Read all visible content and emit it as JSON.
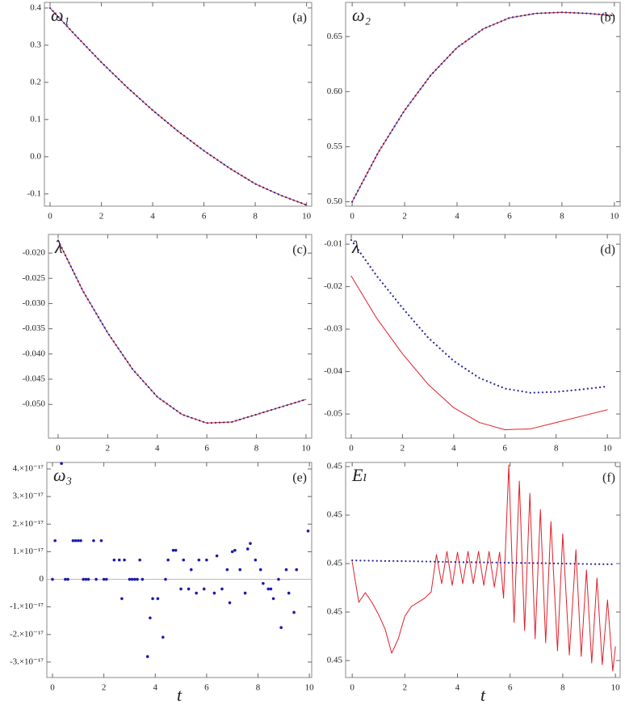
{
  "chart_data": [
    {
      "type": "line",
      "label": "(a)",
      "ylabel": "ω₁",
      "x": [
        0,
        1,
        2,
        3,
        4,
        5,
        6,
        7,
        8,
        9,
        10
      ],
      "xlim": [
        -0.22,
        10.2
      ],
      "ylim": [
        -0.133,
        0.415
      ],
      "xticks": [
        0,
        2,
        4,
        6,
        8,
        10
      ],
      "yticks": [
        -0.1,
        {
          "value": 0,
          "label": "0.0"
        },
        0.1,
        0.2,
        0.3,
        0.4
      ],
      "series": [
        {
          "color": "#e0202a",
          "style": "solid",
          "values": [
            0.4,
            0.326,
            0.254,
            0.187,
            0.125,
            0.068,
            0.016,
            -0.031,
            -0.073,
            -0.104,
            -0.13
          ]
        },
        {
          "color": "#2a2a9a",
          "style": "dotted",
          "values": [
            0.4,
            0.326,
            0.254,
            0.187,
            0.125,
            0.068,
            0.016,
            -0.031,
            -0.073,
            -0.104,
            -0.13
          ]
        }
      ]
    },
    {
      "type": "line",
      "label": "(b)",
      "ylabel": "ω₂",
      "x": [
        0,
        1,
        2,
        3,
        4,
        5,
        6,
        7,
        8,
        9,
        10
      ],
      "xlim": [
        -0.25,
        10.22
      ],
      "ylim": [
        0.496,
        0.681
      ],
      "xticks": [
        0,
        2,
        4,
        6,
        8,
        10
      ],
      "yticks": [
        {
          "value": 0.5,
          "label": "0.50"
        },
        {
          "value": 0.55,
          "label": "0.55"
        },
        {
          "value": 0.6,
          "label": "0.60"
        },
        {
          "value": 0.65,
          "label": "0.65"
        }
      ],
      "series": [
        {
          "color": "#e0202a",
          "style": "solid",
          "values": [
            0.5,
            0.545,
            0.583,
            0.615,
            0.64,
            0.657,
            0.667,
            0.671,
            0.672,
            0.671,
            0.669
          ]
        },
        {
          "color": "#2a2a9a",
          "style": "dotted",
          "values": [
            0.5,
            0.545,
            0.583,
            0.615,
            0.64,
            0.657,
            0.667,
            0.671,
            0.672,
            0.671,
            0.669
          ]
        }
      ]
    },
    {
      "type": "line",
      "label": "(c)",
      "ylabel": "λ",
      "x": [
        0,
        1,
        2,
        3,
        4,
        5,
        6,
        7,
        8,
        9,
        10
      ],
      "xlim": [
        -0.39,
        10.23
      ],
      "ylim": [
        -0.0567,
        -0.0163
      ],
      "xticks": [
        0,
        2,
        4,
        6,
        8,
        10
      ],
      "yticks": [
        {
          "value": -0.02,
          "label": "-0.020"
        },
        {
          "value": -0.025,
          "label": "-0.025"
        },
        {
          "value": -0.03,
          "label": "-0.030"
        },
        {
          "value": -0.035,
          "label": "-0.035"
        },
        {
          "value": -0.04,
          "label": "-0.040"
        },
        {
          "value": -0.045,
          "label": "-0.045"
        },
        {
          "value": -0.05,
          "label": "-0.050"
        }
      ],
      "series": [
        {
          "color": "#e0202a",
          "style": "solid",
          "values": [
            -0.0175,
            -0.0275,
            -0.0358,
            -0.043,
            -0.0485,
            -0.052,
            -0.0537,
            -0.0535,
            -0.052,
            -0.0505,
            -0.049
          ]
        },
        {
          "color": "#2a2a9a",
          "style": "dotted",
          "values": [
            -0.0175,
            -0.0275,
            -0.0358,
            -0.043,
            -0.0485,
            -0.052,
            -0.0537,
            -0.0535,
            -0.052,
            -0.0505,
            -0.049
          ]
        }
      ]
    },
    {
      "type": "line",
      "label": "(d)",
      "ylabel": "λ",
      "x": [
        0,
        1,
        2,
        3,
        4,
        5,
        6,
        7,
        8,
        9,
        10
      ],
      "xlim": [
        -0.22,
        10.5
      ],
      "ylim": [
        -0.0557,
        -0.0077
      ],
      "xticks": [
        0,
        2,
        4,
        6,
        8,
        10
      ],
      "yticks": [
        -0.01,
        -0.02,
        -0.03,
        -0.04,
        -0.05
      ],
      "series": [
        {
          "color": "#e0202a",
          "style": "solid",
          "values": [
            -0.0175,
            -0.0275,
            -0.0358,
            -0.043,
            -0.0485,
            -0.052,
            -0.0537,
            -0.0535,
            -0.052,
            -0.0505,
            -0.049
          ]
        },
        {
          "color": "#2a2a9a",
          "style": "dotted",
          "values": [
            -0.009,
            -0.0175,
            -0.025,
            -0.032,
            -0.0375,
            -0.0415,
            -0.044,
            -0.045,
            -0.0448,
            -0.0442,
            -0.0435
          ]
        }
      ]
    },
    {
      "type": "scatter",
      "label": "(e)",
      "ylabel": "ω₃",
      "xlabel": "t",
      "zeroline": true,
      "xlim": [
        -0.22,
        10.09
      ],
      "ylim": [
        -3.56e-17,
        4.235e-17
      ],
      "xticks": [
        0,
        2,
        4,
        6,
        8,
        10
      ],
      "yticks": [
        {
          "value": 4e-17,
          "label": "4.×10⁻¹⁷"
        },
        {
          "value": 3e-17,
          "label": "3.×10⁻¹⁷"
        },
        {
          "value": 2e-17,
          "label": "2.×10⁻¹⁷"
        },
        {
          "value": 1e-17,
          "label": "1.×10⁻¹⁷"
        },
        0,
        {
          "value": -1e-17,
          "label": "-1.×10⁻¹⁷"
        },
        {
          "value": -2e-17,
          "label": "-2.×10⁻¹⁷"
        },
        {
          "value": -3e-17,
          "label": "-3.×10⁻¹⁷"
        }
      ],
      "series": [
        {
          "color": "#1a1ab0",
          "style": "points",
          "x": [
            0,
            0.1,
            0.35,
            0.5,
            0.6,
            0.8,
            0.9,
            1.0,
            1.1,
            1.2,
            1.3,
            1.4,
            1.6,
            1.7,
            1.9,
            2.0,
            2.1,
            2.4,
            2.6,
            2.7,
            2.8,
            3.0,
            3.1,
            3.2,
            3.3,
            3.4,
            3.5,
            3.7,
            3.8,
            3.9,
            4.1,
            4.3,
            4.4,
            4.5,
            4.7,
            4.8,
            5.0,
            5.1,
            5.3,
            5.4,
            5.6,
            5.7,
            5.9,
            6.0,
            6.3,
            6.4,
            6.6,
            6.8,
            6.9,
            7.0,
            7.1,
            7.3,
            7.5,
            7.6,
            7.7,
            7.9,
            8.1,
            8.2,
            8.4,
            8.5,
            8.6,
            8.8,
            8.9,
            9.1,
            9.2,
            9.4,
            9.5,
            9.95
          ],
          "values": [
            0,
            1.4e-17,
            4.2e-17,
            0,
            0,
            1.4e-17,
            1.4e-17,
            1.4e-17,
            1.4e-17,
            0,
            0,
            0,
            1.4e-17,
            0,
            1.4e-17,
            0,
            0,
            7e-18,
            7e-18,
            -7e-18,
            7e-18,
            0,
            0,
            0,
            0,
            7e-18,
            0,
            -2.8e-17,
            -1.4e-17,
            -7e-18,
            -7e-18,
            -2.1e-17,
            0,
            7e-18,
            1.05e-17,
            1.05e-17,
            -3.5e-18,
            7e-18,
            -3.5e-18,
            3.5e-18,
            -5e-18,
            7e-18,
            -3.5e-18,
            7e-18,
            -5e-18,
            8.5e-18,
            -3.5e-18,
            3.5e-18,
            -8.5e-18,
            1e-17,
            1.05e-17,
            3.5e-18,
            -5e-18,
            1.1e-17,
            1.3e-17,
            7e-18,
            3.5e-18,
            -1.5e-18,
            -3.5e-18,
            -3.5e-18,
            -7e-18,
            0,
            -1.75e-17,
            3.5e-18,
            -5e-18,
            -1.2e-17,
            3.5e-18,
            1.75e-17
          ]
        }
      ]
    },
    {
      "type": "line",
      "label": "(f)",
      "ylabel": "Eₗ",
      "xlabel": "t",
      "x": [
        0,
        1,
        2,
        3,
        4,
        5,
        6,
        7,
        8,
        9,
        10
      ],
      "xlim": [
        -0.25,
        10.18
      ],
      "ylim": [
        0.4453,
        0.45417
      ],
      "xticks": [
        0,
        2,
        4,
        6,
        8,
        10
      ],
      "yticks": [
        {
          "value": 0.454,
          "label": "0.45"
        },
        {
          "value": 0.452,
          "label": "0.45"
        },
        {
          "value": 0.45,
          "label": "0.45"
        },
        {
          "value": 0.448,
          "label": "0.45"
        },
        {
          "value": 0.446,
          "label": "0.45"
        }
      ],
      "series": [
        {
          "color": "#e0202a",
          "style": "solid",
          "x": [
            0,
            0.25,
            0.5,
            0.75,
            1,
            1.25,
            1.5,
            1.75,
            2,
            2.25,
            2.5,
            2.75,
            3,
            3.2,
            3.4,
            3.6,
            3.8,
            4,
            4.2,
            4.4,
            4.6,
            4.8,
            5,
            5.2,
            5.4,
            5.6,
            5.75,
            5.95,
            6.15,
            6.35,
            6.55,
            6.75,
            6.95,
            7.15,
            7.35,
            7.55,
            7.8,
            8,
            8.25,
            8.5,
            8.7,
            8.9,
            9.1,
            9.3,
            9.5,
            9.7,
            9.9,
            10
          ],
          "values": [
            0.45007,
            0.4484,
            0.4488,
            0.4484,
            0.4479,
            0.4473,
            0.4463,
            0.4469,
            0.44783,
            0.44823,
            0.4484,
            0.44857,
            0.44883,
            0.45037,
            0.44917,
            0.4505,
            0.4491,
            0.45047,
            0.44917,
            0.4505,
            0.44917,
            0.4505,
            0.4491,
            0.4505,
            0.44903,
            0.45047,
            0.44857,
            0.45407,
            0.44757,
            0.4534,
            0.44723,
            0.4529,
            0.4469,
            0.45223,
            0.44673,
            0.45173,
            0.4464,
            0.45123,
            0.44623,
            0.45057,
            0.44617,
            0.44973,
            0.4459,
            0.4494,
            0.44583,
            0.4485,
            0.44557,
            0.44657
          ]
        },
        {
          "color": "#2a2a9a",
          "style": "dotted",
          "values": [
            0.45013,
            0.45011,
            0.4501,
            0.45008,
            0.45006,
            0.45005,
            0.45003,
            0.45002,
            0.45,
            0.44998,
            0.44997
          ]
        }
      ]
    }
  ]
}
